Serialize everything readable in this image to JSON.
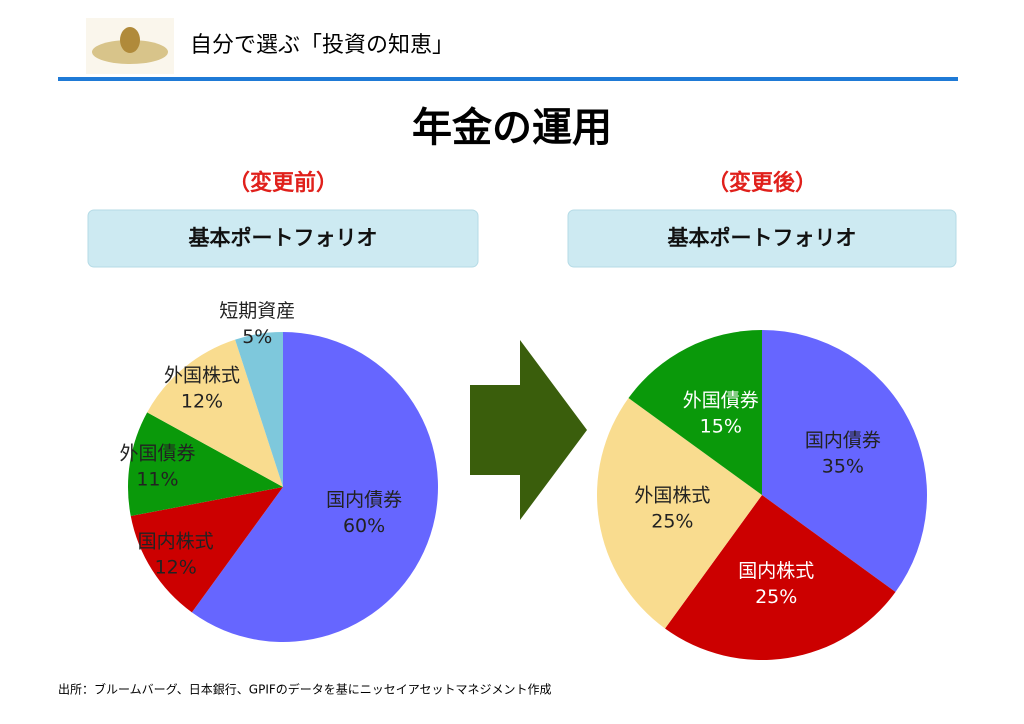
{
  "header": {
    "title": "自分で選ぶ「投資の知恵」"
  },
  "slide_title": "年金の運用",
  "footer": "出所：ブルームバーグ、日本銀行、GPIFのデータを基にニッセイアセットマネジメント作成",
  "chart_data": [
    {
      "type": "pie",
      "subtitle": "（変更前）",
      "title": "基本ポートフォリオ",
      "categories": [
        "国内債券",
        "国内株式",
        "外国債券",
        "外国株式",
        "短期資産"
      ],
      "values": [
        60,
        12,
        11,
        12,
        5
      ],
      "value_labels": [
        "60%",
        "12%",
        "11%",
        "12%",
        "5%"
      ],
      "colors": [
        "#6666ff",
        "#cc0000",
        "#0a990a",
        "#f9dc8f",
        "#7ec8dc"
      ]
    },
    {
      "type": "pie",
      "subtitle": "（変更後）",
      "title": "基本ポートフォリオ",
      "categories": [
        "国内債券",
        "国内株式",
        "外国株式",
        "外国債券"
      ],
      "values": [
        35,
        25,
        25,
        15
      ],
      "value_labels": [
        "35%",
        "25%",
        "25%",
        "15%"
      ],
      "colors": [
        "#6666ff",
        "#cc0000",
        "#f9dc8f",
        "#0a990a"
      ]
    }
  ]
}
